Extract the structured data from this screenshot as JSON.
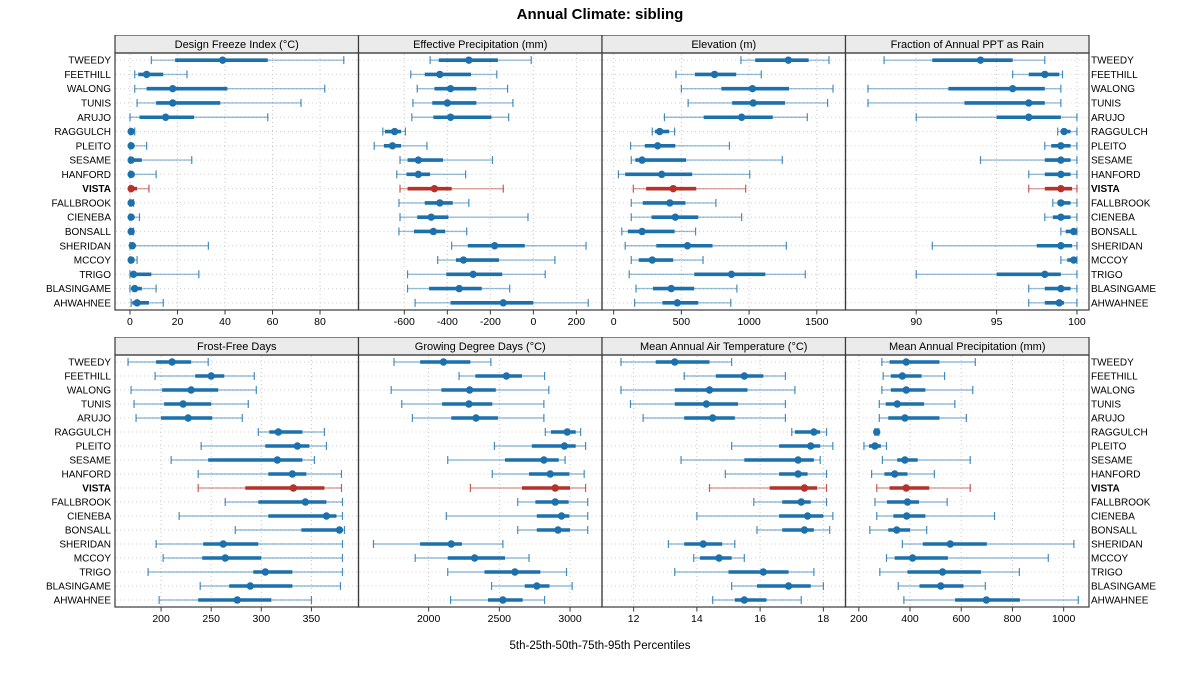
{
  "title": "Annual Climate: sibling",
  "caption": "5th-25th-50th-75th-95th Percentiles",
  "highlight_site": "VISTA",
  "colors": {
    "series_normal": "#1c71ad",
    "series_highlight": "#b5322a",
    "strip_bg": "#ebebeb",
    "panel_border": "#3a3a3a",
    "grid_dotted": "#c9c9c9",
    "row_dotted": "#d2d2d2",
    "text": "#000000"
  },
  "sites": [
    "TWEEDY",
    "FEETHILL",
    "WALONG",
    "TUNIS",
    "ARUJO",
    "RAGGULCH",
    "PLEITO",
    "SESAME",
    "HANFORD",
    "VISTA",
    "FALLBROOK",
    "CIENEBA",
    "BONSALL",
    "SHERIDAN",
    "MCCOY",
    "TRIGO",
    "BLASINGAME",
    "AHWAHNEE"
  ],
  "chart_data": {
    "type": "dotplot-percentiles",
    "percentiles": [
      5,
      25,
      50,
      75,
      95
    ],
    "note": "Each row: [p5,p25,p50,p75,p95]; thin line p5-p95, thick line p25-p75, dot at p50",
    "panels": [
      {
        "strip_label": "Design Freeze Index (°C)",
        "block": 0,
        "ticks": [
          0,
          20,
          40,
          60,
          80
        ],
        "domain": [
          -6.3,
          96.2
        ],
        "values": [
          [
            9,
            19,
            39,
            58,
            90
          ],
          [
            2,
            3.5,
            7,
            14,
            24
          ],
          [
            2,
            7,
            18,
            41,
            82
          ],
          [
            3,
            11,
            18,
            38,
            72
          ],
          [
            0,
            4,
            15,
            27,
            58
          ],
          [
            0,
            0,
            0.5,
            1,
            2
          ],
          [
            0,
            0,
            0.5,
            1,
            7
          ],
          [
            0,
            0,
            0.5,
            5,
            26
          ],
          [
            0,
            0,
            0.5,
            2,
            11
          ],
          [
            0,
            0,
            0.5,
            3,
            8
          ],
          [
            0,
            0,
            0.5,
            1,
            1.5
          ],
          [
            0,
            0,
            0.5,
            1.5,
            4
          ],
          [
            0,
            0,
            0.5,
            1,
            1.5
          ],
          [
            0,
            0,
            1,
            2,
            33
          ],
          [
            0,
            0,
            0.5,
            1.5,
            3
          ],
          [
            0,
            0.5,
            1.5,
            9,
            29
          ],
          [
            0,
            0.5,
            2,
            5,
            11
          ],
          [
            0.5,
            1,
            3,
            8,
            14
          ]
        ]
      },
      {
        "strip_label": "Effective Precipitation (mm)",
        "block": 0,
        "ticks": [
          -600,
          -400,
          -200,
          0,
          200
        ],
        "domain": [
          -813,
          319
        ],
        "values": [
          [
            -480,
            -440,
            -300,
            -165,
            -10
          ],
          [
            -570,
            -505,
            -435,
            -290,
            -170
          ],
          [
            -540,
            -460,
            -385,
            -265,
            -120
          ],
          [
            -560,
            -470,
            -400,
            -265,
            -95
          ],
          [
            -565,
            -465,
            -385,
            -195,
            -115
          ],
          [
            -700,
            -690,
            -645,
            -615,
            -595
          ],
          [
            -740,
            -695,
            -655,
            -615,
            -495
          ],
          [
            -620,
            -585,
            -535,
            -420,
            -190
          ],
          [
            -635,
            -590,
            -535,
            -480,
            -315
          ],
          [
            -620,
            -585,
            -460,
            -380,
            -140
          ],
          [
            -625,
            -505,
            -435,
            -375,
            -300
          ],
          [
            -620,
            -540,
            -475,
            -395,
            -25
          ],
          [
            -625,
            -555,
            -465,
            -410,
            -310
          ],
          [
            -380,
            -305,
            -180,
            -40,
            245
          ],
          [
            -445,
            -360,
            -325,
            -160,
            100
          ],
          [
            -585,
            -405,
            -280,
            -145,
            55
          ],
          [
            -585,
            -485,
            -345,
            -240,
            -110
          ],
          [
            -550,
            -385,
            -140,
            0,
            255
          ]
        ]
      },
      {
        "strip_label": "Elevation (m)",
        "block": 0,
        "ticks": [
          0,
          500,
          1000,
          1500
        ],
        "domain": [
          -86,
          1712
        ],
        "values": [
          [
            940,
            1045,
            1290,
            1440,
            1590
          ],
          [
            460,
            600,
            745,
            905,
            1090
          ],
          [
            500,
            795,
            1025,
            1295,
            1620
          ],
          [
            550,
            875,
            1030,
            1265,
            1580
          ],
          [
            375,
            665,
            945,
            1175,
            1430
          ],
          [
            285,
            305,
            340,
            410,
            450
          ],
          [
            125,
            230,
            325,
            455,
            855
          ],
          [
            130,
            160,
            210,
            535,
            1245
          ],
          [
            35,
            85,
            355,
            580,
            1005
          ],
          [
            145,
            240,
            440,
            610,
            975
          ],
          [
            130,
            215,
            415,
            530,
            755
          ],
          [
            130,
            280,
            455,
            625,
            945
          ],
          [
            60,
            105,
            210,
            450,
            605
          ],
          [
            85,
            315,
            545,
            730,
            1275
          ],
          [
            130,
            185,
            285,
            440,
            660
          ],
          [
            115,
            595,
            870,
            1120,
            1415
          ],
          [
            165,
            290,
            425,
            595,
            910
          ],
          [
            155,
            360,
            470,
            625,
            865
          ]
        ]
      },
      {
        "strip_label": "Fraction of Annual PPT as Rain",
        "block": 0,
        "ticks": [
          90,
          95,
          100
        ],
        "domain": [
          85.6,
          100.75
        ],
        "values": [
          [
            88,
            91,
            94,
            96,
            98
          ],
          [
            96,
            97,
            98,
            98.9,
            99.1
          ],
          [
            87,
            92,
            96,
            98,
            99
          ],
          [
            87,
            93,
            97,
            98,
            99
          ],
          [
            90,
            95,
            97,
            99,
            100
          ],
          [
            98.8,
            99,
            99.2,
            99.6,
            100
          ],
          [
            98,
            98.4,
            99,
            99.6,
            100
          ],
          [
            94,
            98,
            99,
            99.6,
            100
          ],
          [
            97,
            98,
            99,
            99.6,
            100
          ],
          [
            97,
            98,
            99,
            99.7,
            100
          ],
          [
            98.5,
            98.8,
            99,
            99.6,
            100
          ],
          [
            98,
            98.5,
            99,
            99.6,
            100
          ],
          [
            99,
            99.3,
            99.8,
            100,
            100
          ],
          [
            91,
            97.5,
            99,
            99.7,
            100
          ],
          [
            99,
            99.4,
            99.8,
            100,
            100
          ],
          [
            90,
            95,
            98,
            99,
            100
          ],
          [
            97,
            98,
            99,
            99.6,
            100
          ],
          [
            97,
            98,
            98.9,
            99.2,
            100
          ]
        ]
      },
      {
        "strip_label": "Frost-Free Days",
        "block": 1,
        "ticks": [
          200,
          250,
          300,
          350
        ],
        "domain": [
          154,
          397
        ],
        "values": [
          [
            167,
            195,
            211,
            230,
            247
          ],
          [
            194,
            234,
            250,
            263,
            293
          ],
          [
            170,
            201,
            230,
            257,
            295
          ],
          [
            173,
            203,
            222,
            250,
            287
          ],
          [
            175,
            200,
            227,
            251,
            281
          ],
          [
            297,
            308,
            317,
            341,
            363
          ],
          [
            240,
            304,
            336,
            348,
            365
          ],
          [
            210,
            247,
            316,
            341,
            353
          ],
          [
            237,
            307,
            331,
            345,
            380
          ],
          [
            237,
            284,
            332,
            363,
            380
          ],
          [
            264,
            297,
            344,
            365,
            381
          ],
          [
            218,
            307,
            365,
            375,
            381
          ],
          [
            274,
            340,
            378,
            381,
            383
          ],
          [
            195,
            242,
            262,
            297,
            381
          ],
          [
            202,
            241,
            264,
            300,
            381
          ],
          [
            187,
            292,
            304,
            331,
            381
          ],
          [
            239,
            268,
            289,
            331,
            379
          ],
          [
            198,
            237,
            276,
            310,
            350
          ]
        ]
      },
      {
        "strip_label": "Growing Degree Days (°C)",
        "block": 1,
        "ticks": [
          2000,
          2500,
          3000
        ],
        "domain": [
          1504,
          3226
        ],
        "values": [
          [
            1755,
            1940,
            2105,
            2295,
            2440
          ],
          [
            2215,
            2330,
            2550,
            2660,
            2820
          ],
          [
            1735,
            2090,
            2290,
            2475,
            2850
          ],
          [
            1810,
            2095,
            2285,
            2450,
            2815
          ],
          [
            1885,
            2160,
            2335,
            2490,
            2815
          ],
          [
            2825,
            2865,
            2980,
            3040,
            3075
          ],
          [
            2465,
            2730,
            2960,
            3040,
            3110
          ],
          [
            2135,
            2540,
            2815,
            2920,
            2965
          ],
          [
            2450,
            2710,
            2860,
            2995,
            3100
          ],
          [
            2295,
            2660,
            2895,
            3000,
            3110
          ],
          [
            2630,
            2755,
            2895,
            2990,
            3125
          ],
          [
            2125,
            2765,
            2940,
            2995,
            3125
          ],
          [
            2630,
            2765,
            2915,
            3000,
            3125
          ],
          [
            1610,
            1940,
            2160,
            2235,
            2525
          ],
          [
            1905,
            2135,
            2325,
            2540,
            2710
          ],
          [
            2135,
            2395,
            2610,
            2790,
            2975
          ],
          [
            2445,
            2680,
            2765,
            2855,
            3015
          ],
          [
            2155,
            2420,
            2525,
            2665,
            2820
          ]
        ]
      },
      {
        "strip_label": "Mean Annual Air Temperature (°C)",
        "block": 1,
        "ticks": [
          12,
          14,
          16,
          18
        ],
        "domain": [
          11.0,
          18.7
        ],
        "values": [
          [
            11.6,
            12.7,
            13.3,
            14.4,
            15.1
          ],
          [
            13.6,
            14.6,
            15.5,
            16.1,
            16.8
          ],
          [
            11.6,
            13.3,
            14.4,
            15.6,
            17.1
          ],
          [
            11.9,
            13.3,
            14.3,
            15.3,
            16.8
          ],
          [
            12.3,
            13.6,
            14.5,
            15.2,
            16.8
          ],
          [
            17.0,
            17.1,
            17.7,
            17.9,
            18.1
          ],
          [
            15.1,
            16.6,
            17.6,
            17.9,
            18.3
          ],
          [
            13.5,
            15.5,
            17.2,
            17.7,
            17.9
          ],
          [
            14.9,
            16.6,
            17.2,
            17.5,
            18.1
          ],
          [
            14.4,
            16.3,
            17.4,
            17.8,
            18.1
          ],
          [
            15.8,
            16.7,
            17.3,
            17.6,
            18.1
          ],
          [
            14.0,
            16.6,
            17.5,
            18.0,
            18.3
          ],
          [
            15.9,
            16.7,
            17.4,
            17.7,
            18.2
          ],
          [
            13.1,
            13.6,
            14.2,
            14.8,
            15.2
          ],
          [
            13.9,
            14.1,
            14.7,
            15.1,
            15.5
          ],
          [
            13.3,
            15.0,
            16.1,
            16.9,
            17.7
          ],
          [
            15.1,
            15.9,
            16.9,
            17.6,
            18.0
          ],
          [
            14.5,
            15.2,
            15.5,
            16.2,
            17.3
          ]
        ]
      },
      {
        "strip_label": "Mean Annual Precipitation (mm)",
        "block": 1,
        "ticks": [
          200,
          400,
          600,
          800,
          1000
        ],
        "domain": [
          148,
          1099
        ],
        "values": [
          [
            290,
            320,
            385,
            515,
            655
          ],
          [
            295,
            325,
            370,
            445,
            535
          ],
          [
            290,
            325,
            385,
            460,
            645
          ],
          [
            280,
            305,
            350,
            455,
            575
          ],
          [
            280,
            315,
            380,
            515,
            620
          ],
          [
            263,
            266,
            270,
            274,
            278
          ],
          [
            220,
            240,
            263,
            286,
            308
          ],
          [
            292,
            350,
            380,
            430,
            635
          ],
          [
            250,
            300,
            340,
            390,
            495
          ],
          [
            270,
            320,
            385,
            475,
            635
          ],
          [
            263,
            310,
            390,
            435,
            545
          ],
          [
            270,
            335,
            387,
            460,
            730
          ],
          [
            243,
            315,
            348,
            400,
            465
          ],
          [
            370,
            450,
            557,
            700,
            1040
          ],
          [
            308,
            340,
            410,
            548,
            940
          ],
          [
            282,
            390,
            527,
            677,
            827
          ],
          [
            354,
            437,
            520,
            609,
            694
          ],
          [
            376,
            576,
            698,
            829,
            1057
          ]
        ]
      }
    ]
  }
}
